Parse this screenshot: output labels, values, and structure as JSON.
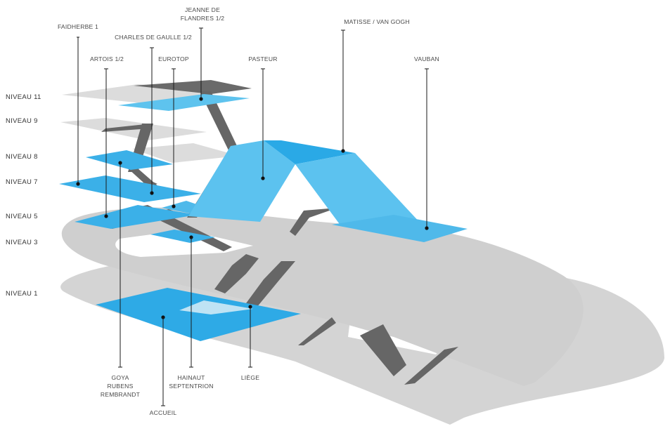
{
  "colors": {
    "floor_grey": "#d0d0d0",
    "floor_grey_light": "#dedede",
    "ramp_dark": "#666666",
    "blue": "#2aa9e6",
    "blue_light": "#5ec3ee"
  },
  "levels": [
    "NIVEAU 11",
    "NIVEAU 9",
    "NIVEAU 8",
    "NIVEAU 7",
    "NIVEAU 5",
    "NIVEAU 3",
    "NIVEAU 1"
  ],
  "labels": {
    "faidherbe": "FAIDHERBE 1",
    "jeanne": [
      "JEANNE DE",
      "FLANDRES 1/2"
    ],
    "charles": "CHARLES DE GAULLE 1/2",
    "matisse": "MATISSE / VAN GOGH",
    "artois": "ARTOIS 1/2",
    "eurotop": "EUROTOP",
    "pasteur": "PASTEUR",
    "vauban": "VAUBAN",
    "goya": [
      "GOYA",
      "RUBENS",
      "REMBRANDT"
    ],
    "hainaut": [
      "HAINAUT",
      "SEPTENTRION"
    ],
    "liege": "LIÈGE",
    "accueil": "ACCUEIL"
  }
}
